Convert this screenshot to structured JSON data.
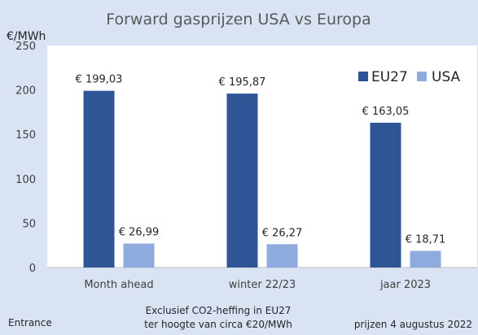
{
  "chart_data": {
    "type": "bar",
    "title": "Forward gasprijzen USA vs Europa",
    "ylabel": "€/MWh",
    "xlabel": "",
    "categories": [
      "Month ahead",
      "winter 22/23",
      "jaar 2023"
    ],
    "series": [
      {
        "name": "EU27",
        "values": [
          199.03,
          195.87,
          163.05
        ],
        "labels": [
          "€ 199,03",
          "€ 195,87",
          "€ 163,05"
        ],
        "color": "#2f5597"
      },
      {
        "name": "USA",
        "values": [
          26.99,
          26.27,
          18.71
        ],
        "labels": [
          "€ 26,99",
          "€ 26,27",
          "€ 18,71"
        ],
        "color": "#8faadc"
      }
    ],
    "ylim": [
      0,
      250
    ],
    "yticks": [
      0,
      50,
      100,
      150,
      200,
      250
    ],
    "grid": false,
    "legend": "top-right"
  },
  "footer": {
    "left": "Entrance",
    "note_line1": "Exclusief CO2-heffing in EU27",
    "note_line2": "ter hoogte van circa €20/MWh",
    "right": "prijzen 4 augustus 2022"
  },
  "colors": {
    "background": "#dae3f3",
    "plot_background": "#ffffff"
  }
}
